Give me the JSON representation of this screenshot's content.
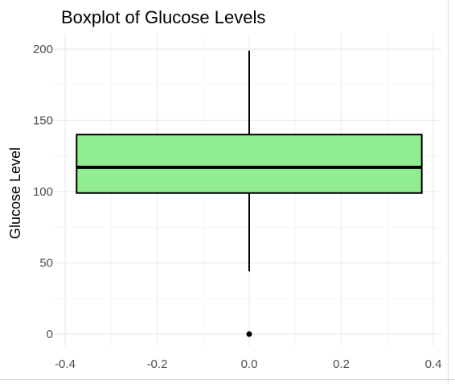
{
  "chart_data": {
    "type": "boxplot",
    "title": "Boxplot of Glucose Levels",
    "xlabel": "",
    "ylabel": "Glucose Level",
    "xlim": [
      -0.4,
      0.4
    ],
    "ylim": [
      0,
      200
    ],
    "x_ticks": [
      "-0.4",
      "-0.2",
      "0.0",
      "0.2",
      "0.4"
    ],
    "y_ticks": [
      "0",
      "50",
      "100",
      "150",
      "200"
    ],
    "grid": true,
    "box": {
      "x_left": -0.375,
      "x_right": 0.375,
      "whisker_low": 44,
      "q1": 99,
      "median": 117,
      "q3": 140,
      "whisker_high": 199,
      "outliers": [
        0
      ]
    },
    "colors": {
      "box_fill": "#90ee90",
      "box_stroke": "#000000",
      "grid_major": "#ebebeb",
      "grid_minor": "#f5f5f5"
    }
  }
}
